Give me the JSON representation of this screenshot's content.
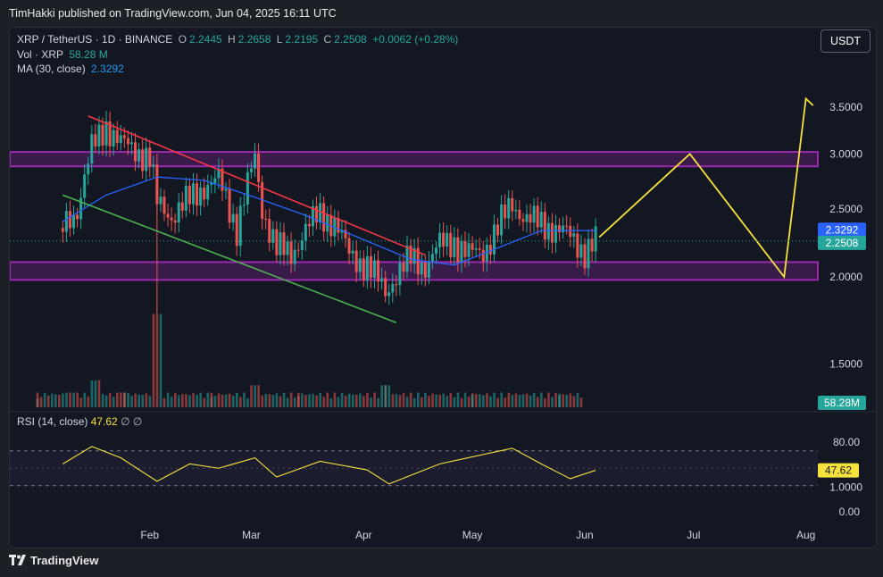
{
  "header": {
    "published_by": "TimHakki published on TradingView.com, Jun 04, 2025 16:11 UTC"
  },
  "legend": {
    "symbol": "XRP / TetherUS · 1D · BINANCE",
    "o_label": "O",
    "o_value": "2.2445",
    "h_label": "H",
    "h_value": "2.2658",
    "l_label": "L",
    "l_value": "2.2195",
    "c_label": "C",
    "c_value": "2.2508",
    "change": "+0.0062 (+0.28%)",
    "vol_label": "Vol · XRP",
    "vol_value": "58.28 M",
    "ma_label": "MA (30, close)",
    "ma_value": "2.3292"
  },
  "rsi": {
    "label": "RSI (14, close)",
    "value": "47.62",
    "extra1": "∅",
    "extra2": "∅"
  },
  "currency_button": "USDT",
  "footer": {
    "brand": "TradingView"
  },
  "colors": {
    "up": "#26a69a",
    "down": "#ef5350",
    "ma": "#2962ff",
    "zone": "#9c27b0",
    "rsi": "#f7e13c",
    "projection": "#f7e13c",
    "resistance_line": "#f23645",
    "support_line": "#4caf50",
    "price_label_bg": "#26a69a",
    "ma_label_bg": "#2962ff"
  },
  "chart_data": {
    "type": "candlestick",
    "symbol": "XRP/USDT",
    "timeframe": "1D",
    "y_axis": {
      "scale": "log",
      "ticks": [
        "3.5000",
        "3.0000",
        "2.5000",
        "2.0000",
        "1.5000",
        "1.0000"
      ],
      "tick_values": [
        3.5,
        3.0,
        2.5,
        2.0,
        1.5,
        1.0
      ]
    },
    "x_axis": {
      "ticks": [
        "Feb",
        "Mar",
        "Apr",
        "May",
        "Jun",
        "Jul",
        "Aug"
      ],
      "tick_dates": [
        "2025-02-01",
        "2025-03-01",
        "2025-04-01",
        "2025-05-01",
        "2025-06-01",
        "2025-07-01",
        "2025-08-01"
      ]
    },
    "price_labels": {
      "ma": "2.3292",
      "close": "2.2508",
      "volume": "58.28M"
    },
    "rsi_axis": {
      "ticks": [
        "80.00",
        "0.00"
      ],
      "tick_values": [
        80,
        0
      ],
      "bands": [
        70,
        30
      ]
    },
    "close_series": {
      "dates": [
        "2025-01-08",
        "2025-01-12",
        "2025-01-16",
        "2025-01-20",
        "2025-01-24",
        "2025-01-28",
        "2025-02-01",
        "2025-02-03",
        "2025-02-07",
        "2025-02-12",
        "2025-02-16",
        "2025-02-20",
        "2025-02-25",
        "2025-03-02",
        "2025-03-04",
        "2025-03-08",
        "2025-03-12",
        "2025-03-16",
        "2025-03-20",
        "2025-03-24",
        "2025-03-28",
        "2025-04-02",
        "2025-04-07",
        "2025-04-10",
        "2025-04-14",
        "2025-04-18",
        "2025-04-22",
        "2025-04-26",
        "2025-04-30",
        "2025-05-04",
        "2025-05-08",
        "2025-05-12",
        "2025-05-16",
        "2025-05-20",
        "2025-05-24",
        "2025-05-28",
        "2025-06-01",
        "2025-06-04"
      ],
      "close": [
        2.35,
        2.5,
        3.05,
        3.3,
        3.1,
        3.05,
        2.95,
        2.55,
        2.45,
        2.58,
        2.7,
        2.75,
        2.35,
        2.95,
        2.5,
        2.2,
        2.15,
        2.35,
        2.45,
        2.4,
        2.15,
        2.08,
        1.9,
        2.02,
        2.12,
        2.08,
        2.22,
        2.25,
        2.15,
        2.18,
        2.35,
        2.55,
        2.42,
        2.38,
        2.35,
        2.28,
        2.18,
        2.25
      ]
    },
    "ma_series": {
      "dates": [
        "2025-01-08",
        "2025-01-20",
        "2025-02-03",
        "2025-02-16",
        "2025-03-02",
        "2025-03-16",
        "2025-04-02",
        "2025-04-14",
        "2025-04-26",
        "2025-05-08",
        "2025-05-20",
        "2025-06-04"
      ],
      "ma": [
        2.4,
        2.62,
        2.78,
        2.75,
        2.6,
        2.45,
        2.25,
        2.12,
        2.08,
        2.2,
        2.33,
        2.33
      ]
    },
    "volume_series": {
      "dates": [
        "2025-01-10",
        "2025-01-17",
        "2025-01-24",
        "2025-02-03",
        "2025-02-14",
        "2025-03-02",
        "2025-03-16",
        "2025-04-07",
        "2025-04-22",
        "2025-05-12",
        "2025-06-01"
      ],
      "volume_relative": [
        0.3,
        0.55,
        0.3,
        1.0,
        0.25,
        0.45,
        0.2,
        0.45,
        0.2,
        0.25,
        0.1
      ]
    },
    "rsi_series": {
      "dates": [
        "2025-01-08",
        "2025-01-16",
        "2025-01-24",
        "2025-02-03",
        "2025-02-12",
        "2025-02-20",
        "2025-03-02",
        "2025-03-08",
        "2025-03-20",
        "2025-04-02",
        "2025-04-08",
        "2025-04-22",
        "2025-05-12",
        "2025-05-20",
        "2025-05-28",
        "2025-06-04"
      ],
      "rsi": [
        55,
        75,
        62,
        35,
        55,
        50,
        62,
        40,
        58,
        48,
        32,
        55,
        73,
        55,
        38,
        47.62
      ]
    },
    "zones": [
      {
        "name": "resistance zone",
        "from": 2.88,
        "to": 3.02
      },
      {
        "name": "support zone",
        "from": 1.98,
        "to": 2.1
      }
    ],
    "trendlines": [
      {
        "name": "downtrend resistance",
        "from": [
          "2025-01-15",
          3.4
        ],
        "to": [
          "2025-04-18",
          2.15
        ]
      },
      {
        "name": "downtrend support",
        "from": [
          "2025-01-08",
          2.62
        ],
        "to": [
          "2025-04-10",
          1.72
        ]
      }
    ],
    "projection": {
      "dates": [
        "2025-06-05",
        "2025-06-30",
        "2025-07-26",
        "2025-08-01",
        "2025-08-03"
      ],
      "prices": [
        2.28,
        3.0,
        2.0,
        3.6,
        3.52
      ]
    }
  }
}
